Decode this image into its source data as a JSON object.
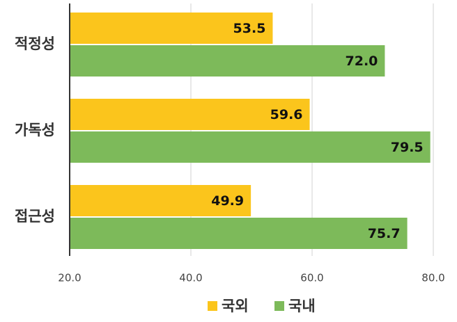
{
  "chart_data": {
    "type": "bar",
    "orientation": "horizontal",
    "categories": [
      "적정성",
      "가독성",
      "접근성"
    ],
    "series": [
      {
        "name": "국외",
        "color": "#fbc51c",
        "values": [
          53.5,
          59.6,
          49.9
        ],
        "value_labels": [
          "53.5",
          "59.6",
          "49.9"
        ]
      },
      {
        "name": "국내",
        "color": "#7dba5a",
        "values": [
          72.0,
          79.5,
          75.7
        ],
        "value_labels": [
          "72.0",
          "79.5",
          "75.7"
        ]
      }
    ],
    "xlim": [
      20,
      80
    ],
    "xticks": [
      {
        "value": 20,
        "label": "20.0"
      },
      {
        "value": 40,
        "label": "40.0"
      },
      {
        "value": 60,
        "label": "60.0"
      },
      {
        "value": 80,
        "label": "80.0"
      }
    ],
    "grid": true,
    "legend": "bottom"
  }
}
